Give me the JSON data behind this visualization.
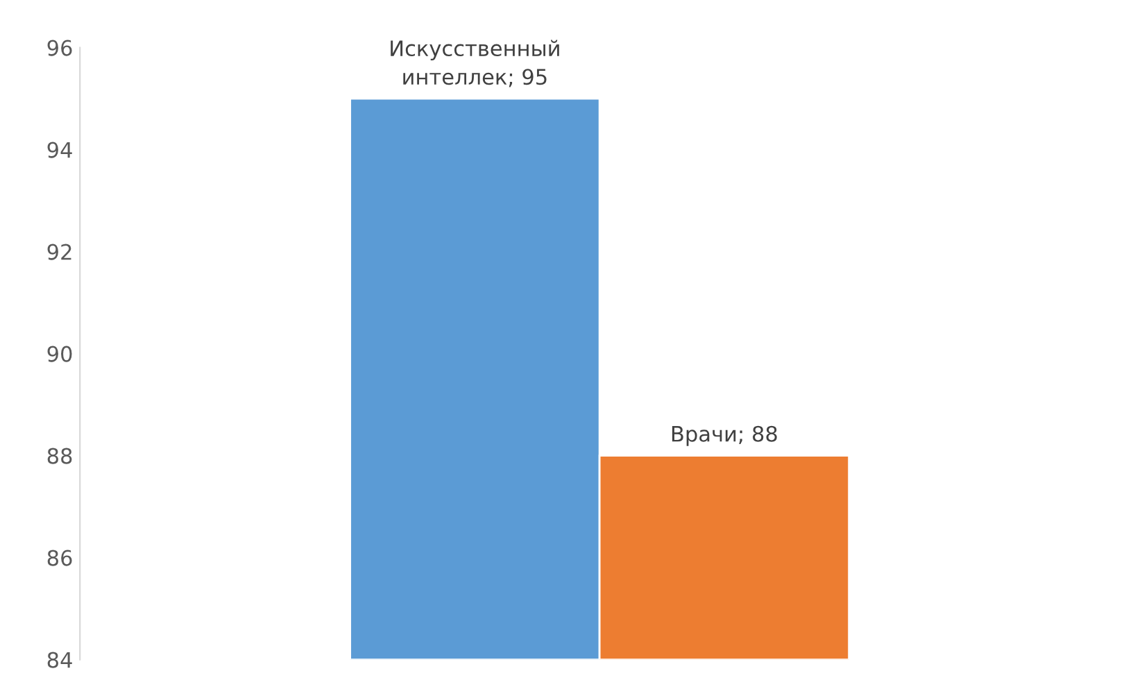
{
  "chart_data": {
    "type": "bar",
    "categories": [
      null
    ],
    "series": [
      {
        "color": "#5b9bd5",
        "values": [
          95
        ],
        "value_labels": [
          "Искусственный\nинтеллек; 95"
        ]
      },
      {
        "color": "#ed7d31",
        "values": [
          88
        ],
        "value_labels": [
          "Врачи; 88"
        ]
      }
    ],
    "ylim": [
      84,
      96
    ],
    "yticks": [
      84,
      86,
      88,
      90,
      92,
      94,
      96
    ],
    "grid": false,
    "legend": false
  }
}
